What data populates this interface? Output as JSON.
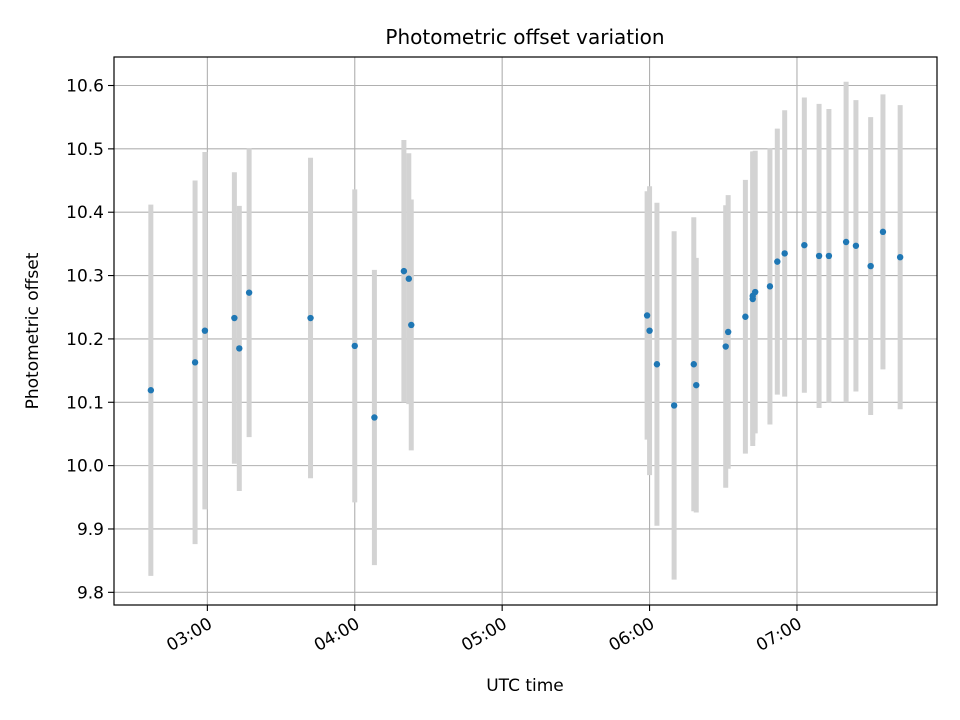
{
  "chart_data": {
    "type": "scatter",
    "title": "Photometric offset variation",
    "xlabel": "UTC time",
    "ylabel": "Photometric offset",
    "x_ticks": [
      "03:00",
      "04:00",
      "05:00",
      "06:00",
      "07:00"
    ],
    "y_ticks": [
      "9.8",
      "9.9",
      "10.0",
      "10.1",
      "10.2",
      "10.3",
      "10.4",
      "10.5",
      "10.6"
    ],
    "xlim": [
      "02:22",
      "07:57"
    ],
    "ylim": [
      9.78,
      10.645
    ],
    "grid": true,
    "colors": {
      "point": "#1f77b4",
      "errorbar": "#d3d3d3",
      "grid": "#b0b0b0"
    },
    "points": [
      {
        "x": "02:37",
        "y": 10.119,
        "err": 0.293
      },
      {
        "x": "02:55",
        "y": 10.163,
        "err": 0.287
      },
      {
        "x": "02:59",
        "y": 10.213,
        "err": 0.282
      },
      {
        "x": "03:11",
        "y": 10.233,
        "err": 0.23
      },
      {
        "x": "03:13",
        "y": 10.185,
        "err": 0.225
      },
      {
        "x": "03:17",
        "y": 10.273,
        "err": 0.228
      },
      {
        "x": "03:42",
        "y": 10.233,
        "err": 0.253
      },
      {
        "x": "04:00",
        "y": 10.189,
        "err": 0.247
      },
      {
        "x": "04:08",
        "y": 10.076,
        "err": 0.233
      },
      {
        "x": "04:20",
        "y": 10.307,
        "err": 0.207
      },
      {
        "x": "04:22",
        "y": 10.295,
        "err": 0.198
      },
      {
        "x": "04:23",
        "y": 10.222,
        "err": 0.198
      },
      {
        "x": "05:59",
        "y": 10.237,
        "err": 0.196
      },
      {
        "x": "06:00",
        "y": 10.213,
        "err": 0.228
      },
      {
        "x": "06:03",
        "y": 10.16,
        "err": 0.255
      },
      {
        "x": "06:10",
        "y": 10.095,
        "err": 0.275
      },
      {
        "x": "06:18",
        "y": 10.16,
        "err": 0.232
      },
      {
        "x": "06:19",
        "y": 10.127,
        "err": 0.201
      },
      {
        "x": "06:31",
        "y": 10.188,
        "err": 0.223
      },
      {
        "x": "06:32",
        "y": 10.211,
        "err": 0.216
      },
      {
        "x": "06:39",
        "y": 10.235,
        "err": 0.216
      },
      {
        "x": "06:42",
        "y": 10.263,
        "err": 0.232
      },
      {
        "x": "06:42",
        "y": 10.268,
        "err": 0.228
      },
      {
        "x": "06:43",
        "y": 10.274,
        "err": 0.223
      },
      {
        "x": "06:49",
        "y": 10.283,
        "err": 0.218
      },
      {
        "x": "06:52",
        "y": 10.322,
        "err": 0.21
      },
      {
        "x": "06:55",
        "y": 10.335,
        "err": 0.226
      },
      {
        "x": "07:03",
        "y": 10.348,
        "err": 0.233
      },
      {
        "x": "07:09",
        "y": 10.331,
        "err": 0.24
      },
      {
        "x": "07:13",
        "y": 10.331,
        "err": 0.232
      },
      {
        "x": "07:20",
        "y": 10.353,
        "err": 0.253
      },
      {
        "x": "07:24",
        "y": 10.347,
        "err": 0.23
      },
      {
        "x": "07:30",
        "y": 10.315,
        "err": 0.235
      },
      {
        "x": "07:35",
        "y": 10.369,
        "err": 0.217
      },
      {
        "x": "07:42",
        "y": 10.329,
        "err": 0.24
      }
    ]
  }
}
